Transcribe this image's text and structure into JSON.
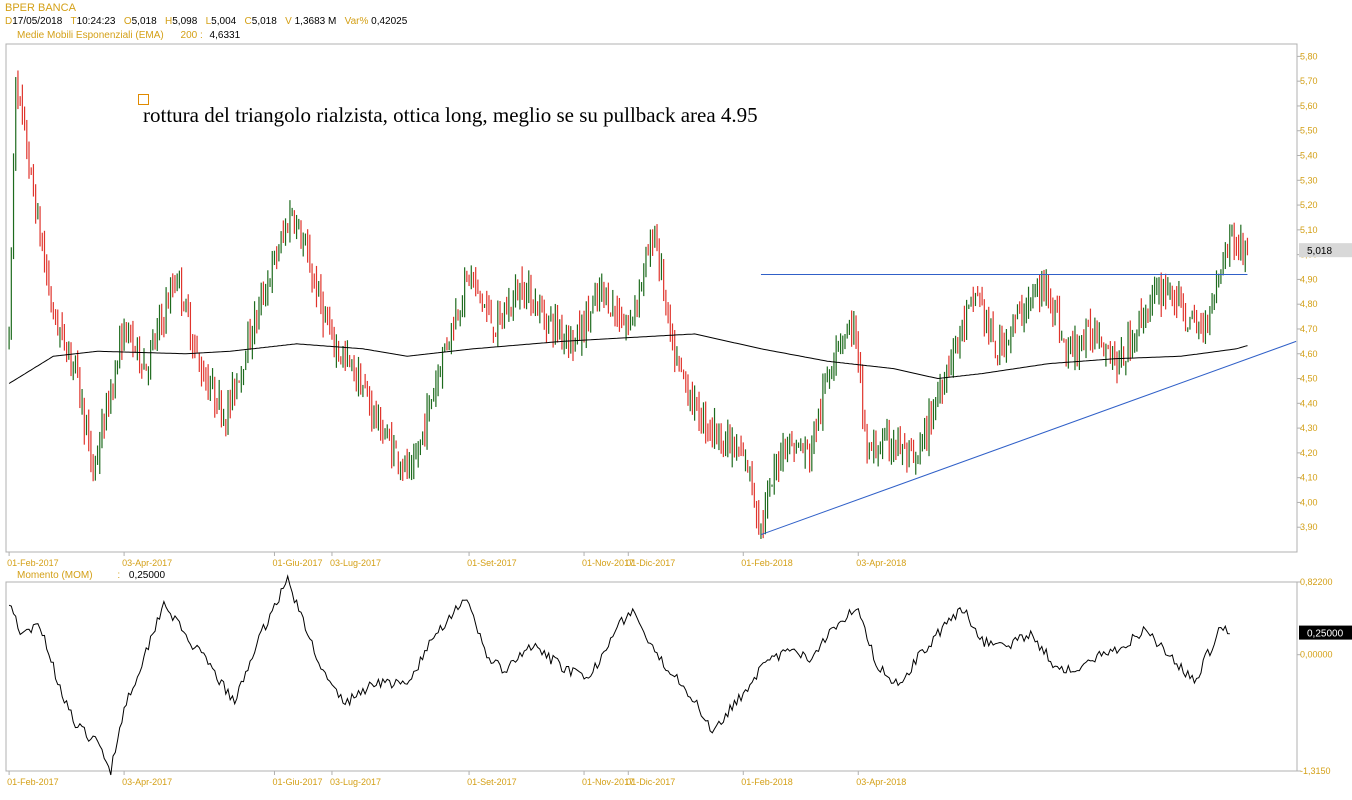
{
  "header": {
    "title": "BPER BANCA",
    "ohlc": [
      {
        "k": "D",
        "v": "17/05/2018"
      },
      {
        "k": "T",
        "v": "10:24:23"
      },
      {
        "k": "O",
        "v": "5,018"
      },
      {
        "k": "H",
        "v": "5,098"
      },
      {
        "k": "L",
        "v": "5,004"
      },
      {
        "k": "C",
        "v": "5,018"
      },
      {
        "k": "V",
        "v": "1,3683 M"
      },
      {
        "k": "Var%",
        "v": "0,42025"
      }
    ],
    "indicator_label": "Medie Mobili Esponenziali (EMA)",
    "indicator_period": "200 :",
    "indicator_value": "4,6331"
  },
  "annotation": {
    "text": "rottura del triangolo rialzista, ottica long, meglio se su pullback area 4.95"
  },
  "colors": {
    "bull": "#1e6b1e",
    "bear": "#e0342c",
    "ema": "#000000",
    "trendline": "#3060c8",
    "axis_text": "#d4a017",
    "grid_border": "#b0b0b0"
  },
  "chart_data": [
    {
      "type": "candlestick",
      "name": "price",
      "ylim": [
        3.8,
        5.85
      ],
      "y_ticks": [
        "5,80",
        "5,70",
        "5,60",
        "5,50",
        "5,40",
        "5,30",
        "5,20",
        "5,10",
        "5,00",
        "4,90",
        "4,80",
        "4,70",
        "4,60",
        "4,50",
        "4,40",
        "4,30",
        "4,20",
        "4,10",
        "4,00",
        "3,90"
      ],
      "last_price_label": "5,018",
      "last_price": 5.018,
      "x_ticks": [
        "01-Feb-2017",
        "03-Apr-2017",
        "01-Giu-2017",
        "03-Lug-2017",
        "01-Set-2017",
        "01-Nov-2017",
        "01-Dic-2017",
        "01-Feb-2018",
        "03-Apr-2018"
      ],
      "anchors": [
        [
          0,
          4.65
        ],
        [
          3,
          5.72
        ],
        [
          10,
          5.3
        ],
        [
          20,
          4.75
        ],
        [
          30,
          4.55
        ],
        [
          38,
          4.12
        ],
        [
          52,
          4.7
        ],
        [
          62,
          4.55
        ],
        [
          76,
          4.92
        ],
        [
          86,
          4.55
        ],
        [
          98,
          4.35
        ],
        [
          110,
          4.7
        ],
        [
          118,
          4.92
        ],
        [
          128,
          5.18
        ],
        [
          136,
          4.95
        ],
        [
          146,
          4.65
        ],
        [
          158,
          4.5
        ],
        [
          168,
          4.3
        ],
        [
          182,
          4.1
        ],
        [
          196,
          4.6
        ],
        [
          208,
          4.92
        ],
        [
          220,
          4.7
        ],
        [
          232,
          4.88
        ],
        [
          242,
          4.75
        ],
        [
          256,
          4.65
        ],
        [
          268,
          4.85
        ],
        [
          280,
          4.7
        ],
        [
          292,
          5.1
        ],
        [
          300,
          4.6
        ],
        [
          312,
          4.35
        ],
        [
          324,
          4.25
        ],
        [
          334,
          4.15
        ],
        [
          340,
          3.9
        ],
        [
          350,
          4.25
        ],
        [
          362,
          4.2
        ],
        [
          374,
          4.65
        ],
        [
          382,
          4.72
        ],
        [
          388,
          4.2
        ],
        [
          400,
          4.25
        ],
        [
          410,
          4.15
        ],
        [
          424,
          4.55
        ],
        [
          438,
          4.85
        ],
        [
          446,
          4.6
        ],
        [
          460,
          4.8
        ],
        [
          470,
          4.88
        ],
        [
          478,
          4.6
        ],
        [
          492,
          4.7
        ],
        [
          502,
          4.55
        ],
        [
          514,
          4.78
        ],
        [
          524,
          4.88
        ],
        [
          534,
          4.72
        ],
        [
          540,
          4.7
        ],
        [
          552,
          5.08
        ],
        [
          560,
          5.0
        ]
      ],
      "ema_label": "EMA 200",
      "ema_points": [
        [
          0,
          4.48
        ],
        [
          20,
          4.59
        ],
        [
          40,
          4.61
        ],
        [
          80,
          4.6
        ],
        [
          100,
          4.61
        ],
        [
          130,
          4.64
        ],
        [
          160,
          4.62
        ],
        [
          180,
          4.59
        ],
        [
          210,
          4.62
        ],
        [
          250,
          4.65
        ],
        [
          290,
          4.67
        ],
        [
          310,
          4.68
        ],
        [
          340,
          4.62
        ],
        [
          370,
          4.57
        ],
        [
          400,
          4.54
        ],
        [
          420,
          4.5
        ],
        [
          440,
          4.52
        ],
        [
          470,
          4.56
        ],
        [
          500,
          4.58
        ],
        [
          530,
          4.59
        ],
        [
          555,
          4.62
        ],
        [
          560,
          4.633
        ]
      ],
      "resistance": {
        "x": [
          340,
          560
        ],
        "y": 4.92
      },
      "support": {
        "x": [
          340,
          582
        ],
        "y": [
          3.87,
          4.65
        ]
      }
    },
    {
      "type": "line",
      "name": "Momento (MOM)",
      "label": "Momento (MOM)",
      "value_label": "0,25000",
      "last_value": 0.25,
      "ylim": [
        -1.315,
        0.822
      ],
      "y_ticks": [
        "0,82200",
        "0,00000",
        "-1,3150"
      ],
      "x_ticks": [
        "01-Feb-2017",
        "03-Apr-2017",
        "01-Giu-2017",
        "03-Lug-2017",
        "01-Set-2017",
        "01-Nov-2017",
        "01-Dic-2017",
        "01-Feb-2018",
        "03-Apr-2018"
      ],
      "anchors": [
        [
          0,
          0.62
        ],
        [
          6,
          0.2
        ],
        [
          14,
          0.35
        ],
        [
          22,
          -0.3
        ],
        [
          30,
          -0.8
        ],
        [
          40,
          -1.0
        ],
        [
          46,
          -1.3
        ],
        [
          52,
          -0.6
        ],
        [
          60,
          -0.1
        ],
        [
          70,
          0.6
        ],
        [
          80,
          0.2
        ],
        [
          90,
          -0.1
        ],
        [
          102,
          -0.55
        ],
        [
          110,
          0.0
        ],
        [
          118,
          0.45
        ],
        [
          126,
          0.85
        ],
        [
          134,
          0.3
        ],
        [
          144,
          -0.3
        ],
        [
          152,
          -0.55
        ],
        [
          166,
          -0.3
        ],
        [
          180,
          -0.35
        ],
        [
          192,
          0.2
        ],
        [
          206,
          0.65
        ],
        [
          216,
          0.0
        ],
        [
          224,
          -0.2
        ],
        [
          236,
          0.1
        ],
        [
          248,
          -0.1
        ],
        [
          262,
          -0.3
        ],
        [
          274,
          0.3
        ],
        [
          282,
          0.5
        ],
        [
          292,
          0.0
        ],
        [
          304,
          -0.3
        ],
        [
          318,
          -0.85
        ],
        [
          330,
          -0.5
        ],
        [
          340,
          -0.15
        ],
        [
          352,
          0.05
        ],
        [
          362,
          -0.05
        ],
        [
          372,
          0.3
        ],
        [
          384,
          0.55
        ],
        [
          392,
          -0.1
        ],
        [
          402,
          -0.35
        ],
        [
          412,
          0.0
        ],
        [
          424,
          0.35
        ],
        [
          432,
          0.52
        ],
        [
          440,
          0.15
        ],
        [
          452,
          0.1
        ],
        [
          462,
          0.25
        ],
        [
          472,
          -0.1
        ],
        [
          482,
          -0.2
        ],
        [
          494,
          0.0
        ],
        [
          504,
          0.1
        ],
        [
          514,
          0.3
        ],
        [
          524,
          0.0
        ],
        [
          536,
          -0.3
        ],
        [
          548,
          0.3
        ],
        [
          552,
          0.25
        ]
      ]
    }
  ]
}
